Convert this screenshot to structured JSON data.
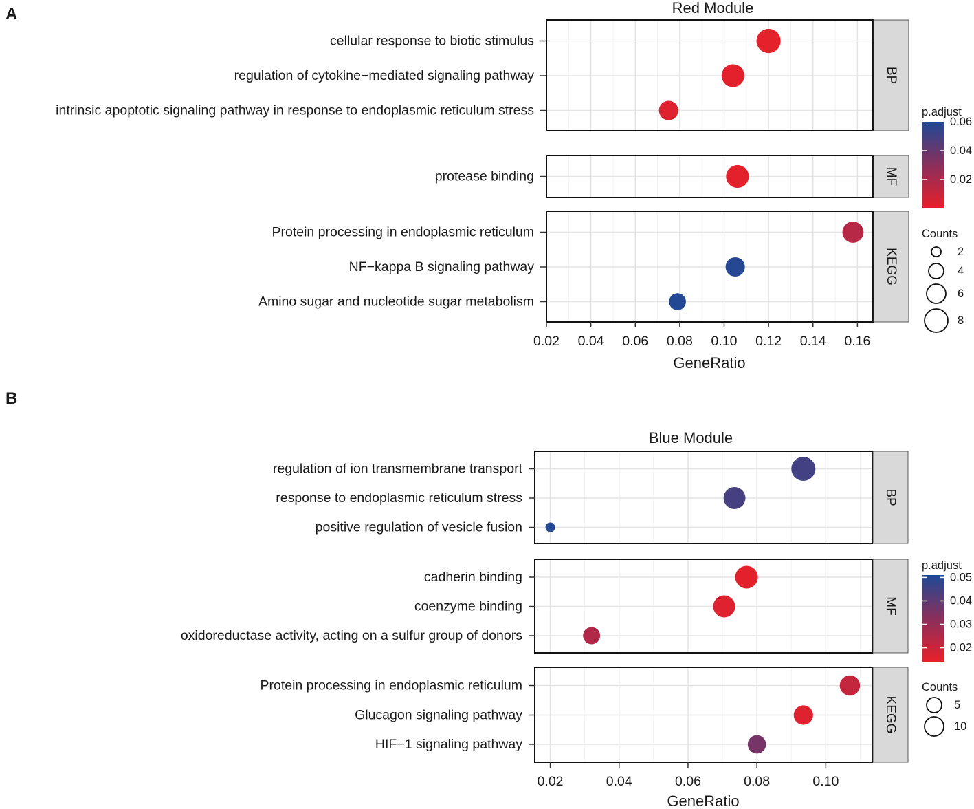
{
  "chart_data": [
    {
      "type": "scatter",
      "panel_label": "A",
      "title": "Red Module",
      "xlabel": "GeneRatio",
      "xlim": [
        0.02,
        0.167
      ],
      "x_ticks": [
        "0.02",
        "0.04",
        "0.06",
        "0.08",
        "0.10",
        "0.12",
        "0.14",
        "0.16"
      ],
      "facets": [
        {
          "name": "BP",
          "terms": [
            {
              "label": "cellular response to biotic stimulus",
              "gene_ratio": 0.12,
              "p_adjust": 0.001,
              "count": 7
            },
            {
              "label": "regulation of cytokine−mediated signaling pathway",
              "gene_ratio": 0.104,
              "p_adjust": 0.002,
              "count": 6
            },
            {
              "label": "intrinsic apoptotic signaling pathway in response to endoplasmic reticulum stress",
              "gene_ratio": 0.075,
              "p_adjust": 0.003,
              "count": 4
            }
          ]
        },
        {
          "name": "MF",
          "terms": [
            {
              "label": "protease binding",
              "gene_ratio": 0.106,
              "p_adjust": 0.002,
              "count": 6
            }
          ]
        },
        {
          "name": "KEGG",
          "terms": [
            {
              "label": "Protein processing in endoplasmic reticulum",
              "gene_ratio": 0.158,
              "p_adjust": 0.016,
              "count": 5
            },
            {
              "label": "NF−kappa B signaling pathway",
              "gene_ratio": 0.105,
              "p_adjust": 0.058,
              "count": 4
            },
            {
              "label": "Amino sugar and nucleotide sugar metabolism",
              "gene_ratio": 0.079,
              "p_adjust": 0.059,
              "count": 3
            }
          ]
        }
      ],
      "color_legend": {
        "title": "p.adjust",
        "min": 0.0,
        "max": 0.06,
        "ticks": [
          "0.06",
          "0.04",
          "0.02"
        ],
        "tick_values": [
          0.06,
          0.04,
          0.02
        ],
        "low_color": "#e8202a",
        "high_color": "#1f4a96"
      },
      "size_legend": {
        "title": "Counts",
        "ticks": [
          "2",
          "4",
          "6",
          "8"
        ],
        "tick_values": [
          2,
          4,
          6,
          8
        ],
        "min_count": 2,
        "max_count": 8
      }
    },
    {
      "type": "scatter",
      "panel_label": "B",
      "title": "Blue Module",
      "xlabel": "GeneRatio",
      "xlim": [
        0.0155,
        0.1135
      ],
      "x_ticks": [
        "0.02",
        "0.04",
        "0.06",
        "0.08",
        "0.10"
      ],
      "facets": [
        {
          "name": "BP",
          "terms": [
            {
              "label": "regulation of ion transmembrane transport",
              "gene_ratio": 0.0935,
              "p_adjust": 0.045,
              "count": 13
            },
            {
              "label": "response to endoplasmic reticulum stress",
              "gene_ratio": 0.0735,
              "p_adjust": 0.044,
              "count": 10
            },
            {
              "label": "positive regulation of vesicle fusion",
              "gene_ratio": 0.02,
              "p_adjust": 0.05,
              "count": 2
            }
          ]
        },
        {
          "name": "MF",
          "terms": [
            {
              "label": "cadherin binding",
              "gene_ratio": 0.077,
              "p_adjust": 0.015,
              "count": 11
            },
            {
              "label": "coenzyme binding",
              "gene_ratio": 0.0705,
              "p_adjust": 0.016,
              "count": 10
            },
            {
              "label": "oxidoreductase activity, acting on a sulfur group of donors",
              "gene_ratio": 0.032,
              "p_adjust": 0.025,
              "count": 5
            }
          ]
        },
        {
          "name": "KEGG",
          "terms": [
            {
              "label": "Protein processing in endoplasmic reticulum",
              "gene_ratio": 0.107,
              "p_adjust": 0.021,
              "count": 8
            },
            {
              "label": "Glucagon signaling pathway",
              "gene_ratio": 0.0935,
              "p_adjust": 0.016,
              "count": 7
            },
            {
              "label": "HIF−1 signaling pathway",
              "gene_ratio": 0.08,
              "p_adjust": 0.036,
              "count": 6
            }
          ]
        }
      ],
      "color_legend": {
        "title": "p.adjust",
        "min": 0.014,
        "max": 0.051,
        "ticks": [
          "0.05",
          "0.04",
          "0.03",
          "0.02"
        ],
        "tick_values": [
          0.05,
          0.04,
          0.03,
          0.02
        ],
        "low_color": "#e8202a",
        "high_color": "#1f4a96"
      },
      "size_legend": {
        "title": "Counts",
        "ticks": [
          "5",
          "10"
        ],
        "tick_values": [
          5,
          10
        ],
        "min_count": 2,
        "max_count": 13
      }
    }
  ]
}
